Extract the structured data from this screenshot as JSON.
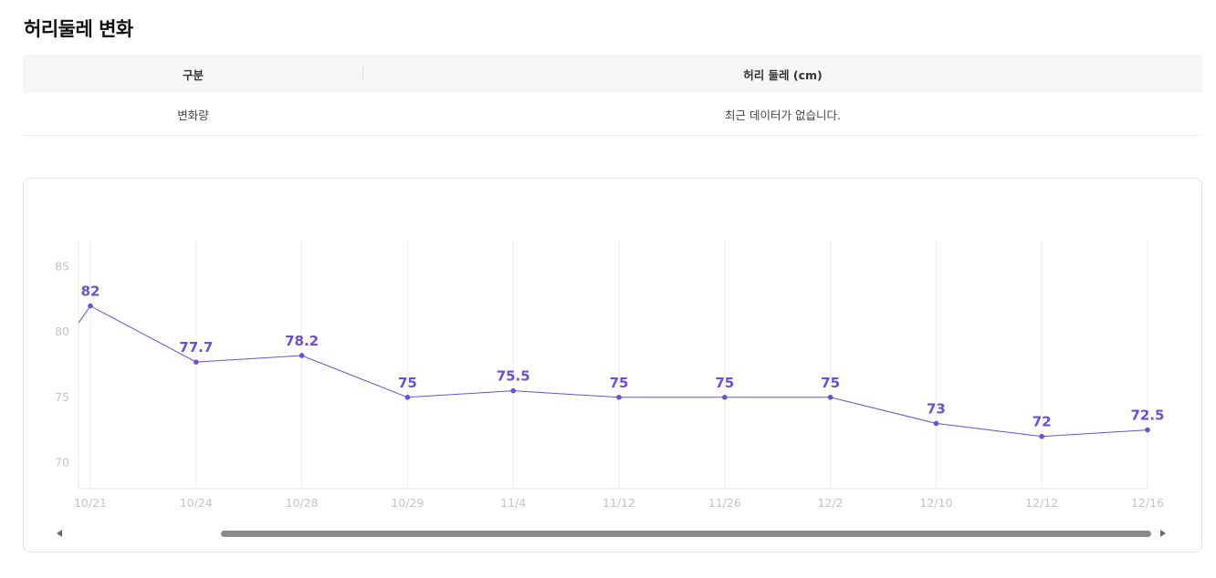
{
  "title": "허리둘레 변화",
  "table": {
    "headers": [
      "구분",
      "허리 둘레 (cm)"
    ],
    "rows": [
      {
        "label": "변화량",
        "value": "최근 데이터가 없습니다."
      }
    ]
  },
  "colors": {
    "series": "#6a4fd8",
    "grid": "#ececec",
    "tick": "#c4c4c4"
  },
  "chart_data": {
    "type": "line",
    "title": "",
    "xlabel": "",
    "ylabel": "",
    "categories": [
      "10/21",
      "10/24",
      "10/28",
      "10/29",
      "11/4",
      "11/12",
      "11/26",
      "12/2",
      "12/10",
      "12/12",
      "12/16"
    ],
    "values": [
      82,
      77.7,
      78.2,
      75,
      75.5,
      75,
      75,
      75,
      73,
      72,
      72.5
    ],
    "value_labels": [
      "82",
      "77.7",
      "78.2",
      "75",
      "75.5",
      "75",
      "75",
      "75",
      "73",
      "72",
      "72.5"
    ],
    "y_ticks": [
      70,
      75,
      80,
      85
    ],
    "ylim": [
      68,
      87
    ],
    "grid": {
      "vertical": true,
      "horizontal": false
    },
    "data_labels": true,
    "legend": "none"
  },
  "scrollbar": {
    "position": 0.14,
    "visible_fraction": 0.86
  }
}
